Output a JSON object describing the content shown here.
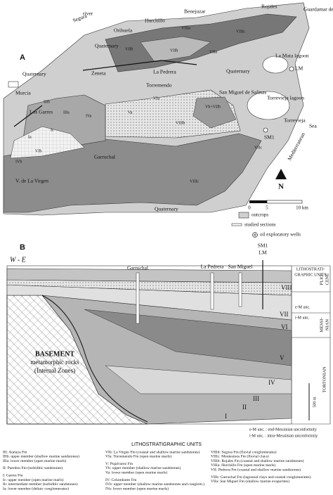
{
  "panel_a": {
    "label": "A",
    "places": [
      "river",
      "Segura",
      "Orihuela",
      "Hurchillo",
      "Benejuzar",
      "Rojales",
      "Guardamar del Segura",
      "Quaternary",
      "Murcia",
      "Quaternary",
      "Zeneta",
      "La Pedrera",
      "Torremendo",
      "Quaternary",
      "La Mata lagoon",
      "LM",
      "San Miguel de Salinas",
      "Torrevieja lagoon",
      "Torrevieja",
      "Los Garres",
      "SM1",
      "Garruchal",
      "V. de La Virgen",
      "Quaternary",
      "Mediterranean",
      "Sea"
    ],
    "units": [
      "VIIIa",
      "VIIb",
      "VIIb",
      "VIIa",
      "VIIIc",
      "VIa",
      "Va",
      "IVa",
      "IIIb",
      "Ia",
      "IVb",
      "VIb",
      "VIIIb",
      "Vb+VIIb",
      "VIIc",
      "VIIIc",
      "Ic",
      "IIIa"
    ],
    "north": "N",
    "scale": [
      "0",
      "5",
      "10 km"
    ],
    "legend": [
      "outcrops",
      "studied sections",
      "oil exploratory wells"
    ]
  },
  "panel_b": {
    "label": "B",
    "direction": "W - E",
    "sections": [
      "Garruchal",
      "La Pedrera",
      "San Miguel",
      "SM1",
      "LM"
    ],
    "column_title": [
      "LITHOSTRATI-",
      "GRAPHIC UNITS"
    ],
    "units": [
      "VIII",
      "VII",
      "VI",
      "V",
      "IV",
      "III",
      "II",
      "I"
    ],
    "unconformities": [
      "e-M unc.",
      "i-M unc."
    ],
    "stages": [
      [
        "PLIO-",
        "CENE"
      ],
      [
        "MESSI-",
        "NIAN"
      ],
      [
        "TORTONIAN"
      ]
    ],
    "basement": [
      "BASEMENT",
      "metamorphic rocks",
      "(Internal Zones)"
    ],
    "scale": "500 m",
    "notes": [
      "e-M unc. : end-Messinian unconformity",
      "i-M unc. : intra-Messinian unconformity"
    ]
  },
  "legend": {
    "title": "LITHOSTRATIGRAPHIC UNITS",
    "columns": [
      [
        [
          "III: Atalaya Fm",
          "IIIb: upper member (shallow marine sandstones)",
          "IIIa: lower member (open marine marls)"
        ],
        [
          "II: Paredon Fm (turbiditic sandstones)"
        ],
        [
          "I: Garres Fm",
          "Ic: upper member (open marine marls)",
          "Ib: intermediate member (turbiditic sandstones)",
          "Ia: lower member (deltaic conglomerates)"
        ]
      ],
      [
        [
          "VIb: La Virgen Fm (coastal and shallow marine sandstones)",
          "VIa: Torremendo Fm (open marine marls)"
        ],
        [
          "V: Pujalvarez Fm",
          "Vb: upper member (shallow marine sandstones)",
          "Va: lower member (open marine marls)"
        ],
        [
          "IV: Columbares Fm",
          "IVb: upper member (shallow marine sandstones and conglom.)",
          "IVa: lower member (open marine marls)"
        ]
      ],
      [
        [
          "VIIId: Segura Fm (fluvial conglomerates)",
          "VIIIc: Montesinos Fm (fluvial clays)",
          "VIIIb: Rojales Fm (coastal and shallow marine sandstones)",
          "VIIIa: Hurchillo Fm (open marine marls)",
          "VII: Pedrera Fm (coastal and shallow marine sandstones)"
        ],
        [
          "VIIb: Garruchal Fm (lagoonal clays and coastal conglomerates)",
          "VIIa: San Miguel Fm (shallow marine evaporites)"
        ]
      ]
    ]
  }
}
